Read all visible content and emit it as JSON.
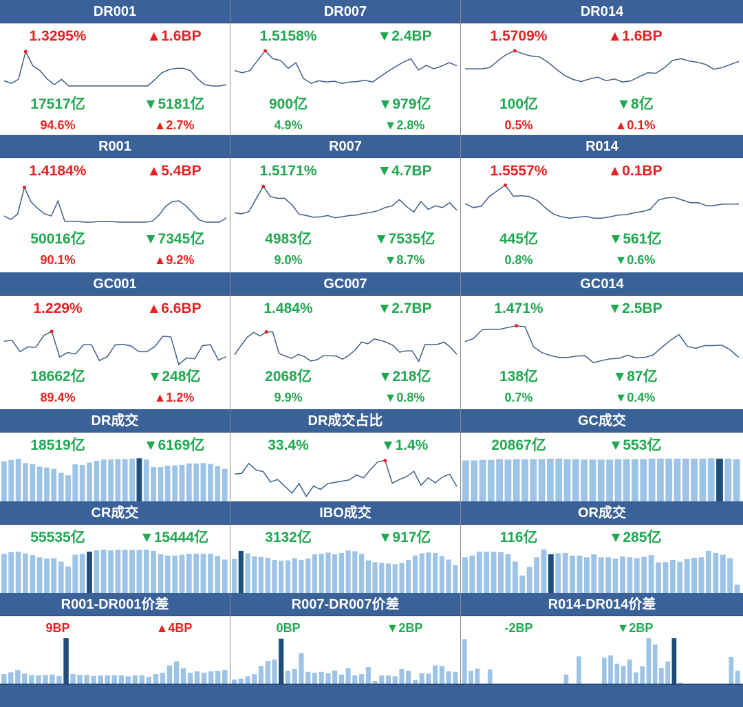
{
  "colors": {
    "header_bg": "#3b6199",
    "up": "#e8201f",
    "down": "#1fa84f",
    "line": "#3b5f8a",
    "bar": "#9dc3e6",
    "bar_highlight": "#1f4e79",
    "peak_dot": "#e8201f"
  },
  "rate_panels": [
    {
      "title": "DR001",
      "rate": "1.3295%",
      "rate_dir": "up",
      "change": "▲1.6BP",
      "change_dir": "up",
      "volume": "17517亿",
      "volume_dir": "down",
      "volume_change": "▼5181亿",
      "volume_change_dir": "down",
      "share": "94.6%",
      "share_dir": "up",
      "share_change": "▲2.7%",
      "share_change_dir": "up"
    },
    {
      "title": "DR007",
      "rate": "1.5158%",
      "rate_dir": "down",
      "change": "▼2.4BP",
      "change_dir": "down",
      "volume": "900亿",
      "volume_dir": "down",
      "volume_change": "▼979亿",
      "volume_change_dir": "down",
      "share": "4.9%",
      "share_dir": "down",
      "share_change": "▼2.8%",
      "share_change_dir": "down"
    },
    {
      "title": "DR014",
      "rate": "1.5709%",
      "rate_dir": "up",
      "change": "▲1.6BP",
      "change_dir": "up",
      "volume": "100亿",
      "volume_dir": "down",
      "volume_change": "▼8亿",
      "volume_change_dir": "down",
      "share": "0.5%",
      "share_dir": "up",
      "share_change": "▲0.1%",
      "share_change_dir": "up"
    },
    {
      "title": "R001",
      "rate": "1.4184%",
      "rate_dir": "up",
      "change": "▲5.4BP",
      "change_dir": "up",
      "volume": "50016亿",
      "volume_dir": "down",
      "volume_change": "▼7345亿",
      "volume_change_dir": "down",
      "share": "90.1%",
      "share_dir": "up",
      "share_change": "▲9.2%",
      "share_change_dir": "up"
    },
    {
      "title": "R007",
      "rate": "1.5171%",
      "rate_dir": "down",
      "change": "▼4.7BP",
      "change_dir": "down",
      "volume": "4983亿",
      "volume_dir": "down",
      "volume_change": "▼7535亿",
      "volume_change_dir": "down",
      "share": "9.0%",
      "share_dir": "down",
      "share_change": "▼8.7%",
      "share_change_dir": "down"
    },
    {
      "title": "R014",
      "rate": "1.5557%",
      "rate_dir": "up",
      "change": "▲0.1BP",
      "change_dir": "up",
      "volume": "445亿",
      "volume_dir": "down",
      "volume_change": "▼561亿",
      "volume_change_dir": "down",
      "share": "0.8%",
      "share_dir": "down",
      "share_change": "▼0.6%",
      "share_change_dir": "down"
    },
    {
      "title": "GC001",
      "rate": "1.229%",
      "rate_dir": "up",
      "change": "▲6.6BP",
      "change_dir": "up",
      "volume": "18662亿",
      "volume_dir": "down",
      "volume_change": "▼248亿",
      "volume_change_dir": "down",
      "share": "89.4%",
      "share_dir": "up",
      "share_change": "▲1.2%",
      "share_change_dir": "up"
    },
    {
      "title": "GC007",
      "rate": "1.484%",
      "rate_dir": "down",
      "change": "▼2.7BP",
      "change_dir": "down",
      "volume": "2068亿",
      "volume_dir": "down",
      "volume_change": "▼218亿",
      "volume_change_dir": "down",
      "share": "9.9%",
      "share_dir": "down",
      "share_change": "▼0.8%",
      "share_change_dir": "down"
    },
    {
      "title": "GC014",
      "rate": "1.471%",
      "rate_dir": "down",
      "change": "▼2.5BP",
      "change_dir": "down",
      "volume": "138亿",
      "volume_dir": "down",
      "volume_change": "▼87亿",
      "volume_change_dir": "down",
      "share": "0.7%",
      "share_dir": "down",
      "share_change": "▼0.4%",
      "share_change_dir": "down"
    }
  ],
  "volume_panels": [
    {
      "title": "DR成交",
      "value": "18519亿",
      "value_dir": "down",
      "change": "▼6169亿",
      "change_dir": "down"
    },
    {
      "title": "DR成交占比",
      "value": "33.4%",
      "value_dir": "down",
      "change": "▼1.4%",
      "change_dir": "down"
    },
    {
      "title": "GC成交",
      "value": "20867亿",
      "value_dir": "down",
      "change": "▼553亿",
      "change_dir": "down"
    },
    {
      "title": "CR成交",
      "value": "55535亿",
      "value_dir": "down",
      "change": "▼15444亿",
      "change_dir": "down"
    },
    {
      "title": "IBO成交",
      "value": "3132亿",
      "value_dir": "down",
      "change": "▼917亿",
      "change_dir": "down"
    },
    {
      "title": "OR成交",
      "value": "116亿",
      "value_dir": "down",
      "change": "▼285亿",
      "change_dir": "down"
    }
  ],
  "spread_panels": [
    {
      "title": "R001-DR001价差",
      "value": "9BP",
      "value_dir": "up",
      "change": "▲4BP",
      "change_dir": "up"
    },
    {
      "title": "R007-DR007价差",
      "value": "0BP",
      "value_dir": "down",
      "change": "▼2BP",
      "change_dir": "down"
    },
    {
      "title": "R014-DR014价差",
      "value": "-2BP",
      "value_dir": "down",
      "change": "▼2BP",
      "change_dir": "down"
    }
  ],
  "chart_data": [
    {
      "panel": "DR001",
      "type": "line",
      "ylim": [
        0,
        100
      ],
      "values": [
        26,
        20,
        29,
        92,
        60,
        49,
        30,
        17,
        29,
        14,
        14,
        14,
        14,
        14,
        14,
        14,
        14,
        14,
        14,
        14,
        14,
        28,
        44,
        51,
        54,
        54,
        49,
        30,
        17,
        14,
        14,
        17
      ],
      "peak_index": 3
    },
    {
      "panel": "DR007",
      "type": "line",
      "ylim": [
        0,
        100
      ],
      "values": [
        49,
        44,
        49,
        72,
        94,
        76,
        72,
        54,
        67,
        31,
        20,
        26,
        23,
        25,
        20,
        23,
        24,
        27,
        23,
        35,
        47,
        58,
        68,
        76,
        50,
        61,
        53,
        59,
        67,
        60
      ],
      "peak_index": 4
    },
    {
      "panel": "DR014",
      "type": "line",
      "ylim": [
        0,
        100
      ],
      "values": [
        53,
        53,
        53,
        56,
        72,
        86,
        94,
        87,
        82,
        80,
        68,
        52,
        38,
        29,
        24,
        30,
        34,
        26,
        30,
        23,
        26,
        35,
        44,
        43,
        55,
        72,
        76,
        71,
        68,
        63,
        52,
        56,
        63,
        70
      ],
      "peak_index": 6
    },
    {
      "panel": "R001",
      "type": "line",
      "ylim": [
        0,
        100
      ],
      "values": [
        25,
        17,
        29,
        90,
        57,
        42,
        30,
        25,
        59,
        13,
        13,
        12,
        11,
        11,
        12,
        12,
        12,
        11,
        11,
        11,
        11,
        11,
        13,
        27,
        47,
        58,
        59,
        48,
        32,
        16,
        11,
        11,
        11,
        21
      ],
      "peak_index": 3
    },
    {
      "panel": "R007",
      "type": "line",
      "ylim": [
        0,
        100
      ],
      "values": [
        32,
        30,
        35,
        64,
        92,
        69,
        65,
        65,
        50,
        29,
        26,
        22,
        23,
        26,
        21,
        23,
        26,
        27,
        31,
        33,
        37,
        44,
        48,
        62,
        46,
        34,
        58,
        40,
        48,
        44,
        55,
        38
      ],
      "peak_index": 4
    },
    {
      "panel": "R014",
      "type": "line",
      "ylim": [
        0,
        100
      ],
      "values": [
        53,
        44,
        47,
        69,
        82,
        95,
        70,
        71,
        69,
        60,
        43,
        29,
        23,
        20,
        22,
        24,
        20,
        20,
        23,
        27,
        28,
        32,
        35,
        40,
        61,
        66,
        67,
        61,
        55,
        55,
        48,
        49,
        52,
        52,
        52
      ],
      "peak_index": 5
    },
    {
      "panel": "GC001",
      "type": "line",
      "ylim": [
        0,
        100
      ],
      "values": [
        53,
        55,
        29,
        40,
        39,
        66,
        75,
        17,
        27,
        24,
        45,
        45,
        9,
        18,
        45,
        46,
        42,
        29,
        29,
        41,
        64,
        63,
        0,
        15,
        13,
        43,
        45,
        10,
        18
      ],
      "peak_index": 6
    },
    {
      "panel": "GC007",
      "type": "line",
      "ylim": [
        0,
        100
      ],
      "values": [
        22,
        43,
        62,
        73,
        65,
        74,
        74,
        25,
        19,
        14,
        23,
        18,
        8,
        11,
        20,
        20,
        19,
        12,
        21,
        33,
        51,
        47,
        58,
        55,
        50,
        43,
        28,
        31,
        31,
        7,
        46,
        45,
        46,
        51,
        39,
        23
      ],
      "peak_index": 5
    },
    {
      "panel": "GC014",
      "type": "line",
      "ylim": [
        0,
        100
      ],
      "values": [
        52,
        59,
        79,
        80,
        80,
        84,
        88,
        86,
        40,
        27,
        20,
        16,
        16,
        19,
        20,
        4,
        9,
        13,
        14,
        21,
        15,
        16,
        22,
        39,
        55,
        68,
        41,
        37,
        43,
        43,
        44,
        33,
        16
      ],
      "peak_index": 6
    },
    {
      "panel": "DR成交占比",
      "type": "line",
      "ylim": [
        0,
        100
      ],
      "values": [
        56,
        58,
        82,
        66,
        62,
        37,
        43,
        27,
        10,
        33,
        2,
        27,
        19,
        33,
        36,
        39,
        42,
        54,
        47,
        68,
        86,
        89,
        34,
        43,
        50,
        63,
        29,
        47,
        35,
        49,
        56,
        26
      ],
      "peak_index": 21
    },
    {
      "panel": "DR成交",
      "type": "bar",
      "ylim": [
        0,
        100
      ],
      "values": [
        91,
        94,
        97,
        87,
        85,
        79,
        77,
        74,
        65,
        59,
        84,
        83,
        88,
        92,
        95,
        95,
        96,
        96,
        97,
        98,
        95,
        78,
        78,
        81,
        82,
        83,
        86,
        86,
        87,
        85,
        80,
        74
      ],
      "highlight_index": 19
    },
    {
      "panel": "GC成交",
      "type": "bar",
      "ylim": [
        0,
        100
      ],
      "values": [
        93,
        93,
        94,
        94,
        96,
        95,
        96,
        96,
        96,
        96,
        97,
        97,
        96,
        96,
        95,
        95,
        95,
        95,
        96,
        96,
        96,
        96,
        97,
        97,
        97,
        97,
        97,
        97,
        97,
        98,
        97,
        97,
        96
      ],
      "highlight_index": 30
    },
    {
      "panel": "CR成交",
      "type": "bar",
      "ylim": [
        0,
        100
      ],
      "values": [
        90,
        94,
        95,
        91,
        87,
        82,
        79,
        80,
        72,
        61,
        88,
        90,
        95,
        98,
        99,
        98,
        99,
        99,
        99,
        99,
        99,
        97,
        89,
        86,
        86,
        88,
        90,
        90,
        90,
        90,
        85,
        77
      ],
      "highlight_index": 12
    },
    {
      "panel": "IBO成交",
      "type": "bar",
      "ylim": [
        0,
        100
      ],
      "values": [
        78,
        97,
        91,
        84,
        83,
        81,
        76,
        74,
        75,
        80,
        76,
        79,
        89,
        90,
        93,
        89,
        92,
        98,
        96,
        90,
        75,
        71,
        69,
        68,
        66,
        69,
        76,
        86,
        91,
        93,
        92,
        85,
        77,
        64
      ],
      "highlight_index": 1
    },
    {
      "panel": "OR成交",
      "type": "bar",
      "ylim": [
        0,
        100
      ],
      "values": [
        82,
        86,
        95,
        95,
        95,
        94,
        89,
        72,
        40,
        60,
        82,
        100,
        89,
        91,
        92,
        86,
        86,
        82,
        89,
        82,
        82,
        79,
        84,
        82,
        80,
        83,
        87,
        70,
        71,
        76,
        72,
        78,
        81,
        82,
        97,
        92,
        88,
        80,
        19
      ],
      "highlight_index": 12
    },
    {
      "panel": "R001-DR001价差",
      "type": "bar",
      "ylim": [
        0,
        100
      ],
      "values": [
        21,
        25,
        30,
        22,
        19,
        18,
        19,
        20,
        17,
        100,
        21,
        19,
        19,
        17,
        18,
        18,
        18,
        18,
        16,
        18,
        18,
        15,
        21,
        24,
        40,
        49,
        34,
        24,
        27,
        24,
        27,
        28,
        30
      ],
      "highlight_index": 9
    },
    {
      "panel": "R007-DR007价差",
      "type": "bar",
      "ylim": [
        0,
        100
      ],
      "values": [
        9,
        11,
        16,
        21,
        39,
        50,
        53,
        99,
        28,
        32,
        67,
        26,
        24,
        26,
        23,
        29,
        20,
        34,
        18,
        21,
        36,
        6,
        18,
        18,
        16,
        32,
        28,
        8,
        23,
        22,
        40,
        39,
        27,
        26
      ],
      "highlight_index": 7
    },
    {
      "panel": "R014-DR014价差",
      "type": "bar",
      "ylim": [
        0,
        100
      ],
      "values": [
        98,
        28,
        33,
        0,
        31,
        0,
        0,
        0,
        0,
        0,
        0,
        0,
        0,
        0,
        0,
        0,
        20,
        0,
        60,
        0,
        0,
        0,
        57,
        62,
        44,
        39,
        53,
        25,
        38,
        101,
        86,
        35,
        49,
        100,
        2,
        0,
        0,
        0,
        0,
        0,
        0,
        0,
        59,
        28
      ],
      "highlight_index": 33
    }
  ]
}
